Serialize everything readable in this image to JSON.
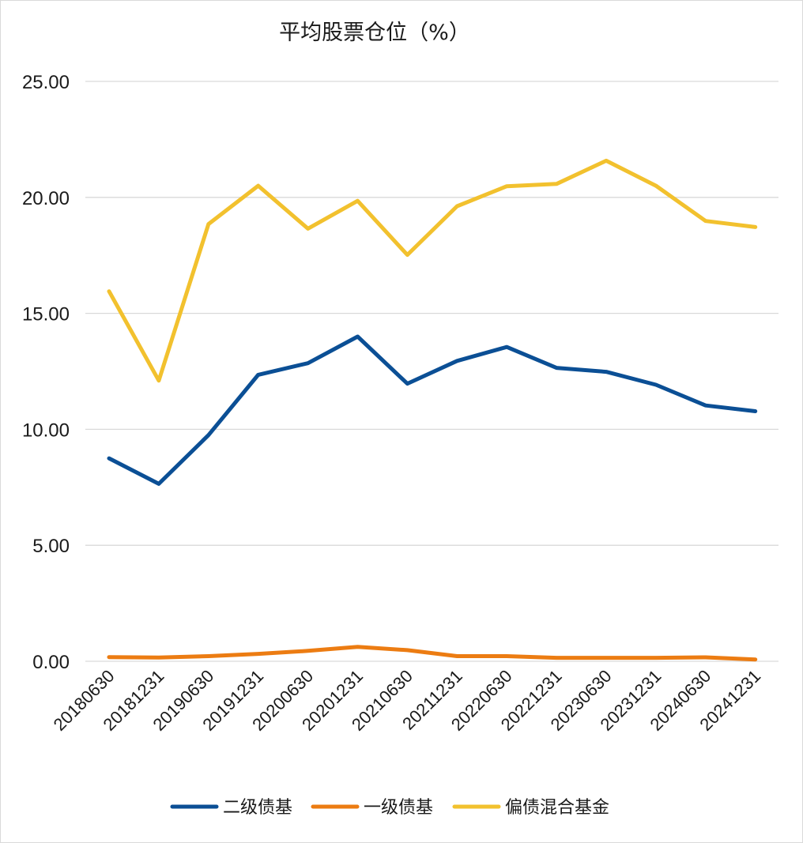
{
  "chart_data": {
    "type": "line",
    "title": "平均股票仓位（%）",
    "xlabel": "",
    "ylabel": "",
    "ylim": [
      0,
      25
    ],
    "yticks": [
      "0.00",
      "5.00",
      "10.00",
      "15.00",
      "20.00",
      "25.00"
    ],
    "categories": [
      "20180630",
      "20181231",
      "20190630",
      "20191231",
      "20200630",
      "20201231",
      "20210630",
      "20211231",
      "20220630",
      "20221231",
      "20230630",
      "20231231",
      "20240630",
      "20241231"
    ],
    "series": [
      {
        "name": "二级债基",
        "color": "#0b4f95",
        "values": [
          8.75,
          7.65,
          9.75,
          12.35,
          12.85,
          14.0,
          11.97,
          12.95,
          13.55,
          12.65,
          12.48,
          11.92,
          11.03,
          10.78
        ]
      },
      {
        "name": "一级债基",
        "color": "#ec7c12",
        "values": [
          0.18,
          0.16,
          0.22,
          0.32,
          0.45,
          0.62,
          0.48,
          0.22,
          0.22,
          0.15,
          0.15,
          0.15,
          0.17,
          0.08
        ]
      },
      {
        "name": "偏债混合基金",
        "color": "#f2c12e",
        "values": [
          15.95,
          12.1,
          18.85,
          20.5,
          18.65,
          19.85,
          17.52,
          19.62,
          20.48,
          20.58,
          21.58,
          20.5,
          18.98,
          18.72
        ]
      }
    ],
    "grid": true,
    "legend_position": "bottom"
  }
}
